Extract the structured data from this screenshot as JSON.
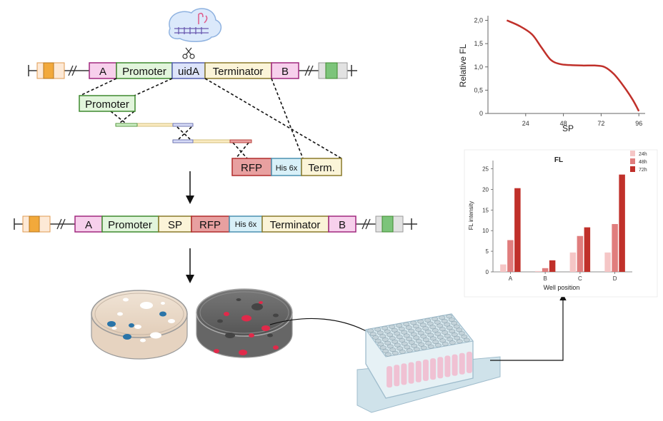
{
  "construct_top": {
    "segments": [
      "A",
      "Promoter",
      "uidA",
      "Terminator",
      "B"
    ]
  },
  "fragments": {
    "promoter": "Promoter",
    "rfp": "RFP",
    "his": "His 6x",
    "term": "Term."
  },
  "construct_final": {
    "segments": [
      "A",
      "Promoter",
      "SP",
      "RFP",
      "His 6x",
      "Terminator",
      "B"
    ]
  },
  "colors": {
    "a_b_fill": "#f7d0ec",
    "a_b_stroke": "#a0287e",
    "promoter_fill": "#e2f5dc",
    "promoter_stroke": "#3e8a2e",
    "uida_fill": "#dde4fa",
    "uida_stroke": "#5560b0",
    "terminator_fill": "#fbf4d8",
    "terminator_stroke": "#8a7a2a",
    "sp_fill": "#fbf4d8",
    "rfp_fill": "#e8a0a0",
    "rfp_stroke": "#b02a2a",
    "his_fill": "#d8f0f8",
    "his_stroke": "#4a90b0",
    "orange_box": "#f2a93b",
    "green_box": "#7cc47a",
    "grey_box": "#d0d0d0",
    "line_chart": "#c0302a",
    "bar_24h": "#f5c6c6",
    "bar_48h": "#e07d7d",
    "bar_72h": "#c0302a"
  },
  "chart_data": [
    {
      "type": "line",
      "ylabel": "Relative FL",
      "xlabel": "SP",
      "x_ticks": [
        24,
        48,
        72,
        96
      ],
      "y_ticks": [
        "0",
        "0,5",
        "1,0",
        "1,5",
        "2,0"
      ],
      "xlim": [
        0,
        100
      ],
      "ylim": [
        0,
        2.1
      ],
      "x": [
        12,
        20,
        28,
        34,
        40,
        46,
        52,
        60,
        68,
        74,
        80,
        86,
        92,
        96
      ],
      "y": [
        2.0,
        1.88,
        1.7,
        1.42,
        1.15,
        1.06,
        1.04,
        1.03,
        1.03,
        1.0,
        0.85,
        0.6,
        0.3,
        0.05
      ]
    },
    {
      "type": "bar",
      "title": "FL",
      "ylabel": "FL intensity",
      "xlabel": "Well position",
      "categories": [
        "A",
        "B",
        "C",
        "D"
      ],
      "y_ticks": [
        "0",
        "5",
        "10",
        "15",
        "20",
        "25"
      ],
      "ylim": [
        0,
        27
      ],
      "legend_position": "top-right",
      "series": [
        {
          "name": "24h",
          "values": [
            1.8,
            0.2,
            4.7,
            4.7
          ]
        },
        {
          "name": "48h",
          "values": [
            7.7,
            0.9,
            8.7,
            11.6
          ]
        },
        {
          "name": "72h",
          "values": [
            20.3,
            2.8,
            10.8,
            23.6
          ]
        }
      ]
    }
  ]
}
